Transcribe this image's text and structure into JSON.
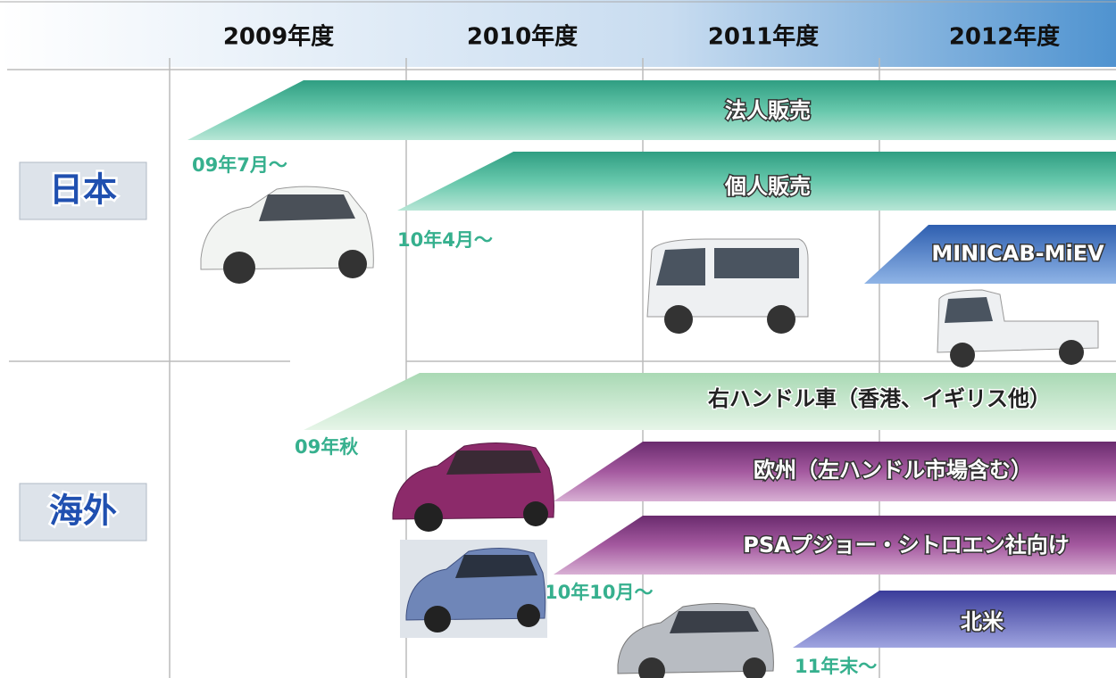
{
  "header": {
    "years": [
      "2009年度",
      "2010年度",
      "2011年度",
      "2012年度"
    ]
  },
  "regions": [
    {
      "label": "日本",
      "bars": [
        {
          "label": "法人販売",
          "start": "09年7月～"
        },
        {
          "label": "個人販売",
          "start": "10年4月～"
        },
        {
          "label": "MINICAB-MiEV"
        }
      ]
    },
    {
      "label": "海外",
      "bars": [
        {
          "label": "右ハンドル車（香港、イギリス他）",
          "start": "09年秋"
        },
        {
          "label": "欧州（左ハンドル市場含む）"
        },
        {
          "label": "PSAプジョー・シトロエン社向け",
          "start": "10年10月～"
        },
        {
          "label": "北米",
          "start": "11年末～"
        }
      ]
    }
  ]
}
